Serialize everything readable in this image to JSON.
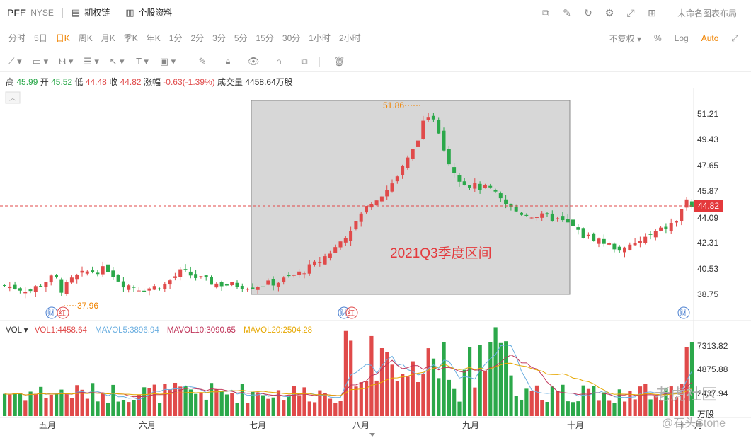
{
  "header": {
    "ticker": "PFE",
    "exchange": "NYSE",
    "links": [
      {
        "icon": "chart-icon",
        "label": "期权链"
      },
      {
        "icon": "document-icon",
        "label": "个股资料"
      }
    ],
    "layout_label": "未命名图表布局"
  },
  "periods": [
    "分时",
    "5日",
    "日K",
    "周K",
    "月K",
    "季K",
    "年K",
    "1分",
    "2分",
    "3分",
    "5分",
    "15分",
    "30分",
    "1小时",
    "2小时"
  ],
  "active_period": "日K",
  "period_options": {
    "adjust": "不复权 ▾",
    "percent": "%",
    "log": "Log",
    "auto": "Auto"
  },
  "quote": {
    "high_label": "高",
    "high": "45.99",
    "open_label": "开",
    "open": "45.52",
    "low_label": "低",
    "low": "44.48",
    "close_label": "收",
    "close": "44.82",
    "change_label": "涨幅",
    "change": "-0.63(-1.39%)",
    "volume_label": "成交量",
    "volume": "4458.64万股"
  },
  "chart": {
    "price_axis": [
      "51.21",
      "49.43",
      "47.65",
      "45.87",
      "44.09",
      "42.31",
      "40.53",
      "38.75"
    ],
    "current_price": "44.82",
    "max_label": "51.86",
    "min_label": "37.96",
    "annotation": "2021Q3季度区间",
    "months": [
      "五月",
      "六月",
      "七月",
      "八月",
      "九月",
      "十月",
      "十一月"
    ],
    "event_markers": [
      "财",
      "红",
      "财",
      "红",
      "财"
    ],
    "volume_axis": [
      "7313.82",
      "4875.88",
      "2437.94",
      "万股"
    ]
  },
  "volume_legend": {
    "title": "VOL ▾",
    "vol1": "VOL1:4458.64",
    "mavol5": "MAVOL5:3896.94",
    "mavol10": "MAVOL10:3090.65",
    "mavol20": "MAVOL20:2504.28"
  },
  "watermarks": [
    "老虎社区",
    "@石头Stone"
  ],
  "colors": {
    "up": "#e04a4a",
    "down": "#2ba84a",
    "accent": "#f08300",
    "highlight_box": "#d0d0d0"
  }
}
